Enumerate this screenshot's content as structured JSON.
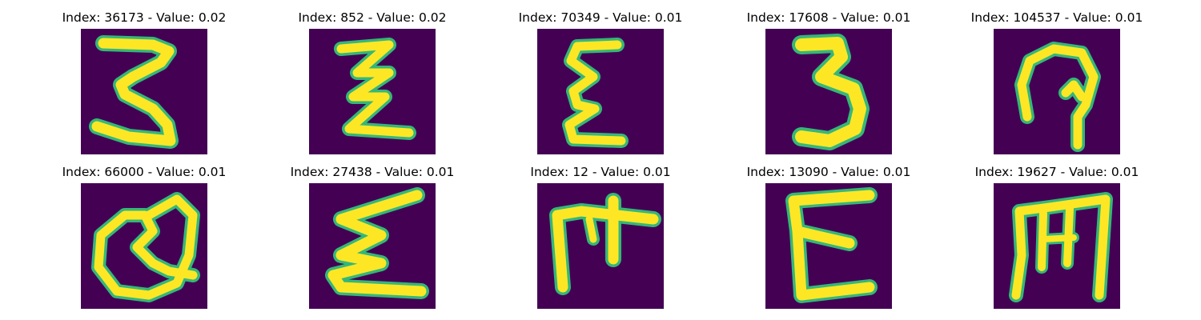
{
  "figure": {
    "panels": [
      {
        "index": "36173",
        "value": "0.02",
        "title": "Index: 36173 - Value: 0.02",
        "glyph": "handwritten-3-like-stroke"
      },
      {
        "index": "852",
        "value": "0.02",
        "title": "Index: 852 - Value: 0.02",
        "glyph": "handwritten-z-zigzag-stroke"
      },
      {
        "index": "70349",
        "value": "0.01",
        "title": "Index: 70349 - Value: 0.01",
        "glyph": "handwritten-epsilon-stroke"
      },
      {
        "index": "17608",
        "value": "0.01",
        "title": "Index: 17608 - Value: 0.01",
        "glyph": "handwritten-3-bold-stroke"
      },
      {
        "index": "104537",
        "value": "0.01",
        "title": "Index: 104537 - Value: 0.01",
        "glyph": "handwritten-loop-stroke"
      },
      {
        "index": "66000",
        "value": "0.01",
        "title": "Index: 66000 - Value: 0.01",
        "glyph": "handwritten-q-loop-stroke"
      },
      {
        "index": "27438",
        "value": "0.01",
        "title": "Index: 27438 - Value: 0.01",
        "glyph": "handwritten-sigma-stroke"
      },
      {
        "index": "12",
        "value": "0.01",
        "title": "Index: 12 - Value: 0.01",
        "glyph": "handwritten-f-like-stroke"
      },
      {
        "index": "13090",
        "value": "0.01",
        "title": "Index: 13090 - Value: 0.01",
        "glyph": "handwritten-e-stroke"
      },
      {
        "index": "19627",
        "value": "0.01",
        "title": "Index: 19627 - Value: 0.01",
        "glyph": "handwritten-m-rotated-stroke"
      }
    ],
    "colors": {
      "background": "#440154",
      "stroke_outer": "#35b779",
      "stroke_inner": "#fde725"
    }
  }
}
